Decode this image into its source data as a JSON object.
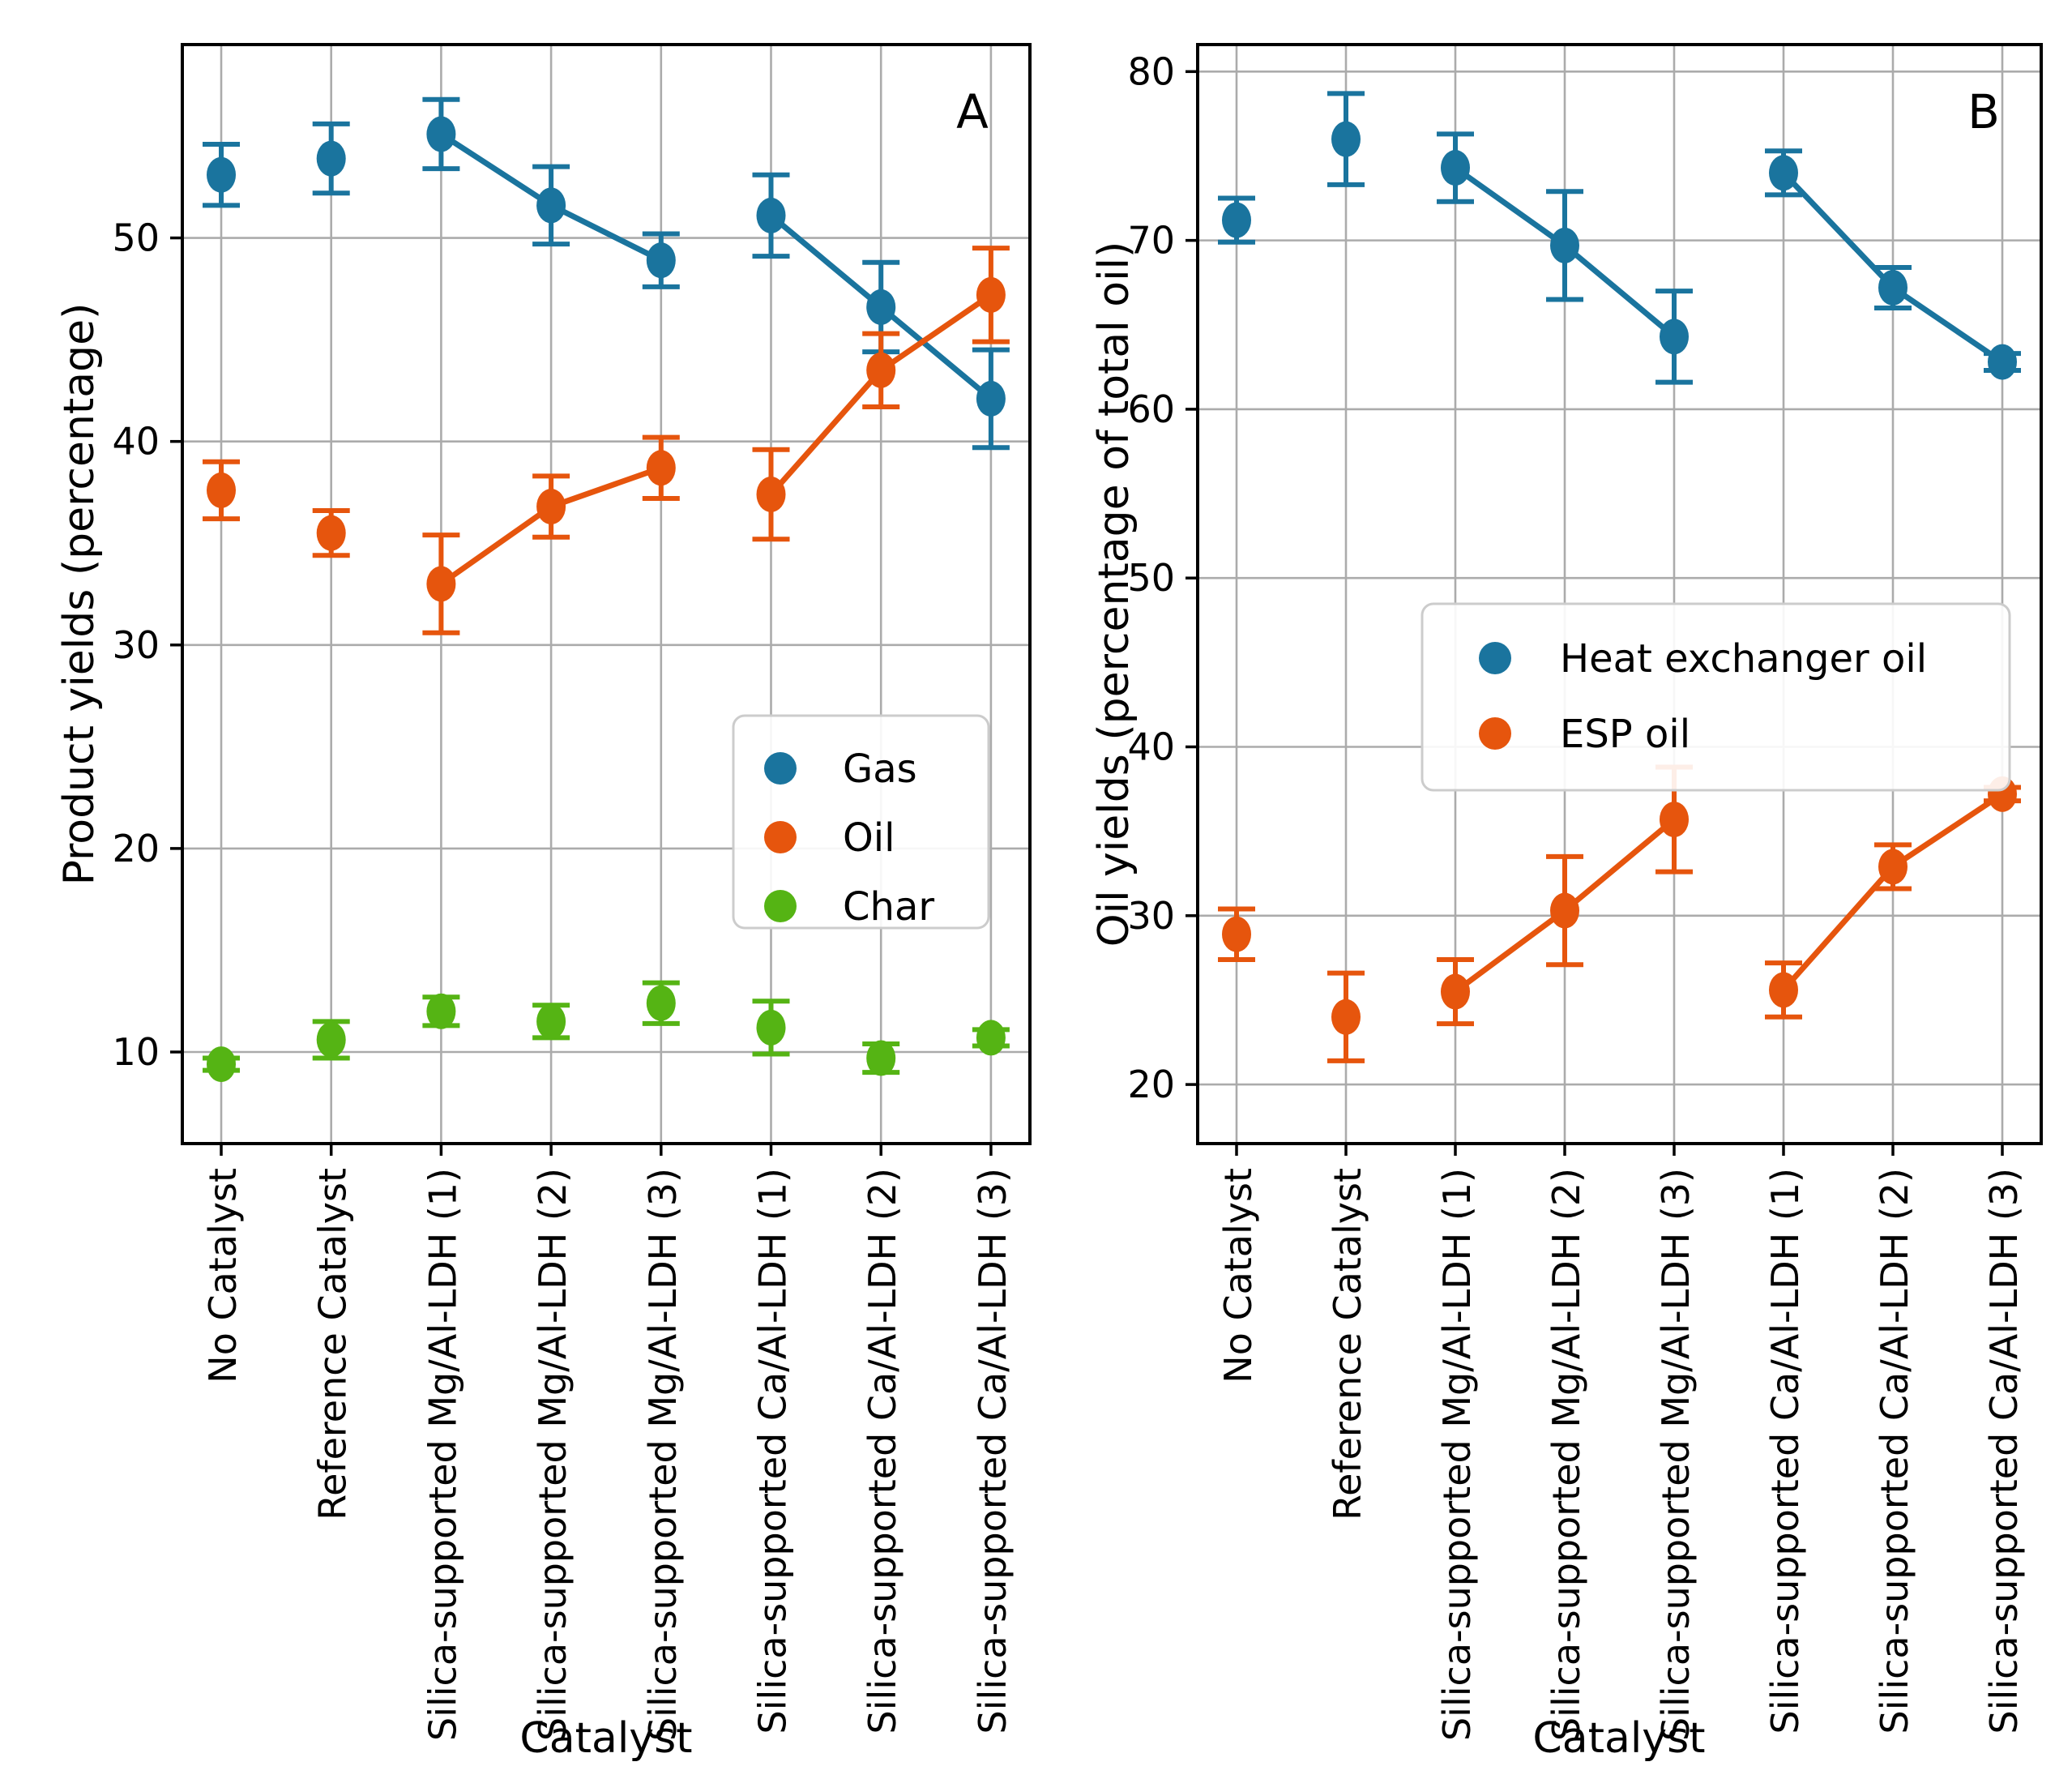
{
  "page": {
    "background": "#ffffff"
  },
  "colors": {
    "blue": "#1a749e",
    "orange": "#e6550d",
    "green": "#55b414",
    "grid": "#ababab",
    "axis": "#000000",
    "legend_border": "#cccccc",
    "legend_fill": "#ffffff",
    "text": "#000000"
  },
  "categories": [
    "No Catalyst",
    "Reference Catalyst",
    "Silica-supported Mg/Al-LDH (1)",
    "Silica-supported Mg/Al-LDH (2)",
    "Silica-supported Mg/Al-LDH (3)",
    "Silica-supported Ca/Al-LDH (1)",
    "Silica-supported Ca/Al-LDH (2)",
    "Silica-supported Ca/Al-LDH (3)"
  ],
  "chart_data": [
    {
      "type": "scatter",
      "panel_letter": "A",
      "title": "",
      "xlabel": "Catalyst",
      "ylabel": "Product yields (percentage)",
      "ylim": [
        5.5,
        59.5
      ],
      "yticks": [
        10,
        20,
        30,
        40,
        50
      ],
      "grid": true,
      "legend_position": "lower-right-inside",
      "categories_ref": "categories",
      "series": [
        {
          "name": "Gas",
          "color": "blue",
          "values": [
            53.1,
            53.9,
            55.1,
            51.6,
            48.9,
            51.1,
            46.6,
            42.1
          ],
          "errors": [
            1.5,
            1.7,
            1.7,
            1.9,
            1.3,
            2.0,
            2.2,
            2.4
          ],
          "line_segments": [
            [
              2,
              3,
              4
            ],
            [
              5,
              6,
              7
            ]
          ]
        },
        {
          "name": "Oil",
          "color": "orange",
          "values": [
            37.6,
            35.5,
            33.0,
            36.8,
            38.7,
            37.4,
            43.5,
            47.2
          ],
          "errors": [
            1.4,
            1.1,
            2.4,
            1.5,
            1.5,
            2.2,
            1.8,
            2.3
          ],
          "line_segments": [
            [
              2,
              3,
              4
            ],
            [
              5,
              6,
              7
            ]
          ]
        },
        {
          "name": "Char",
          "color": "green",
          "values": [
            9.4,
            10.6,
            12.0,
            11.5,
            12.4,
            11.2,
            9.7,
            10.7
          ],
          "errors": [
            0.3,
            0.9,
            0.7,
            0.8,
            1.0,
            1.3,
            0.7,
            0.4
          ],
          "line_segments": []
        }
      ]
    },
    {
      "type": "scatter",
      "panel_letter": "B",
      "title": "",
      "xlabel": "Catalyst",
      "ylabel": "Oil yields (percentage of total oil)",
      "ylim": [
        16.5,
        81.6
      ],
      "yticks": [
        20,
        30,
        40,
        50,
        60,
        70,
        80
      ],
      "grid": true,
      "legend_position": "upper-middle-inside",
      "categories_ref": "categories",
      "series": [
        {
          "name": "Heat exchanger oil",
          "color": "blue",
          "values": [
            71.2,
            76.0,
            74.3,
            69.7,
            64.3,
            74.0,
            67.2,
            62.8
          ],
          "errors": [
            1.3,
            2.7,
            2.0,
            3.2,
            2.7,
            1.3,
            1.2,
            0.5
          ],
          "line_segments": [
            [
              2,
              3,
              4
            ],
            [
              5,
              6,
              7
            ]
          ]
        },
        {
          "name": "ESP oil",
          "color": "orange",
          "values": [
            28.9,
            24.0,
            25.5,
            30.3,
            35.7,
            25.6,
            32.9,
            37.2
          ],
          "errors": [
            1.5,
            2.6,
            1.9,
            3.2,
            3.1,
            1.6,
            1.3,
            0.4
          ],
          "line_segments": [
            [
              2,
              3,
              4
            ],
            [
              5,
              6,
              7
            ]
          ]
        }
      ]
    }
  ]
}
